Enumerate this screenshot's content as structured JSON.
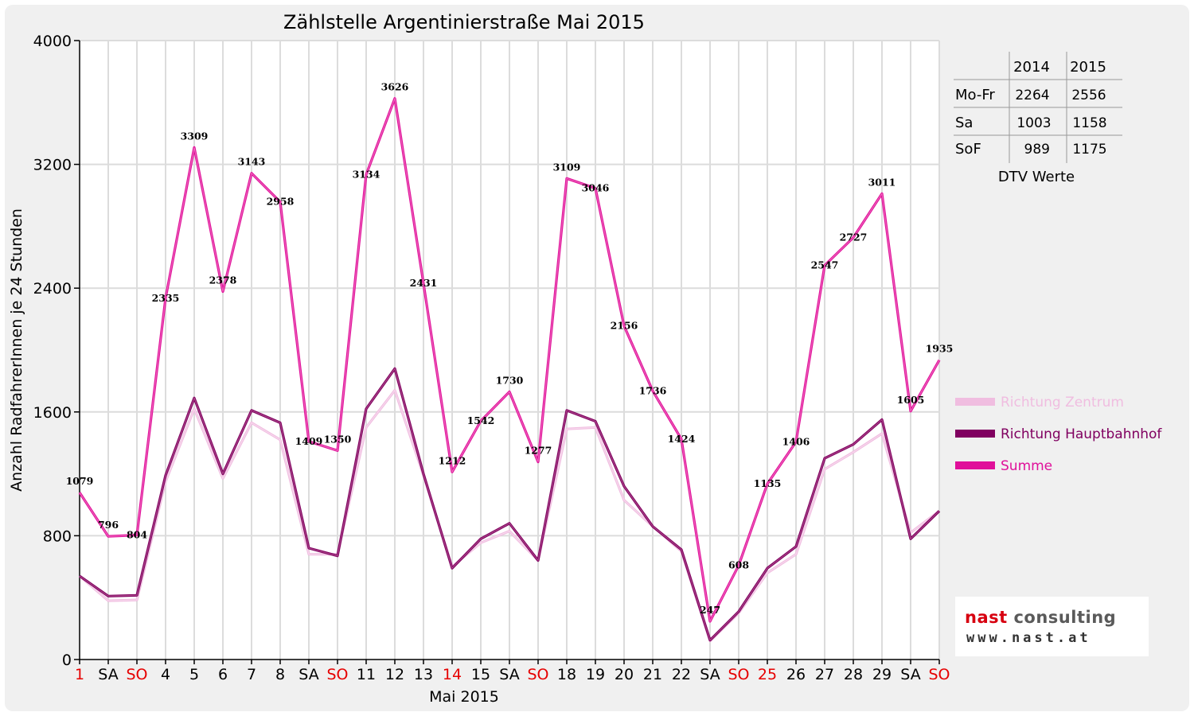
{
  "chart_data": {
    "type": "line",
    "title": "Zählstelle Argentinierstraße Mai 2015",
    "xlabel": "Mai 2015",
    "ylabel": "Anzahl RadfahrerInnen je 24 Stunden",
    "ylim": [
      0,
      4000
    ],
    "yticks": [
      "0",
      "800",
      "1600",
      "2400",
      "3200",
      "4000"
    ],
    "grid": true,
    "legend_position": "right",
    "categories": [
      "1",
      "SA",
      "SO",
      "4",
      "5",
      "6",
      "7",
      "8",
      "SA",
      "SO",
      "11",
      "12",
      "13",
      "14",
      "15",
      "SA",
      "SO",
      "18",
      "19",
      "20",
      "21",
      "22",
      "SA",
      "SO",
      "25",
      "26",
      "27",
      "28",
      "29",
      "SA",
      "SO"
    ],
    "red_categories": [
      0,
      2,
      9,
      13,
      16,
      23,
      24,
      30
    ],
    "series": [
      {
        "name": "Richtung Zentrum",
        "color": "#f0bde0",
        "values": [
          540,
          380,
          385,
          1150,
          1620,
          1170,
          1530,
          1420,
          680,
          680,
          1500,
          1740,
          1190,
          600,
          755,
          830,
          640,
          1490,
          1500,
          1030,
          860,
          700,
          120,
          300,
          560,
          680,
          1230,
          1340,
          1460,
          820,
          960
        ]
      },
      {
        "name": "Richtung Hauptbahnhof",
        "color": "#800060",
        "values": [
          540,
          410,
          415,
          1190,
          1690,
          1200,
          1610,
          1530,
          720,
          670,
          1620,
          1880,
          1200,
          590,
          780,
          880,
          640,
          1610,
          1540,
          1120,
          860,
          710,
          125,
          310,
          590,
          730,
          1300,
          1390,
          1550,
          780,
          960
        ]
      },
      {
        "name": "Summe",
        "color": "#e0109a",
        "values": [
          1079,
          796,
          804,
          2335,
          3309,
          2378,
          3143,
          2958,
          1409,
          1350,
          3134,
          3626,
          2431,
          1212,
          1542,
          1730,
          1277,
          3109,
          3046,
          2156,
          1736,
          1424,
          247,
          608,
          1135,
          1406,
          2547,
          2727,
          3011,
          1605,
          1935
        ]
      }
    ]
  },
  "dtv_table": {
    "columns": [
      "2014",
      "2015"
    ],
    "rows": [
      {
        "label": "Mo-Fr",
        "values": [
          "2264",
          "2556"
        ]
      },
      {
        "label": "Sa",
        "values": [
          "1003",
          "1158"
        ]
      },
      {
        "label": "SoF",
        "values": [
          "989",
          "1175"
        ]
      }
    ],
    "caption": "DTV Werte"
  },
  "logo": {
    "name_part1": "nast",
    "name_part2": "consulting",
    "url": "www.nast.at",
    "color_accent": "#d7000f"
  }
}
